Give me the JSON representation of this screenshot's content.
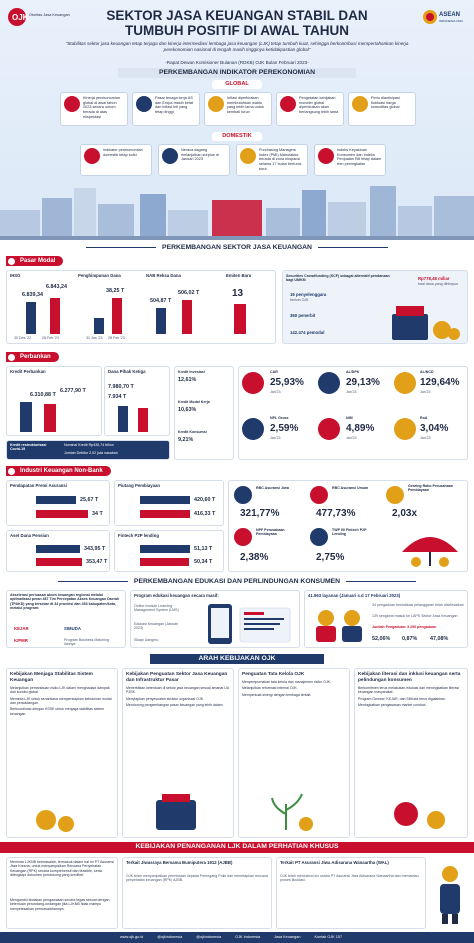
{
  "header": {
    "logo_text": "OJK",
    "logo_sub": "Otoritas Jasa Keuangan",
    "asean_text": "ASEAN",
    "asean_sub": "INDONESIA 2023",
    "title_line1": "SEKTOR JASA KEUANGAN STABIL DAN",
    "title_line2": "TUMBUH POSITIF DI AWAL TAHUN",
    "quote": "\"Stabilitas sektor jasa keuangan tetap terjaga dan kinerja intermediasi lembaga jasa keuangan (LJK) tetap tumbuh kuat, sehingga berkontribusi mempertahankan kinerja perekonomian nasional di tengah masih tingginya ketidakpastian global\"",
    "quote_source": "-Rapat Dewan Komisioner Bulanan (RDKB) OJK Bulan Februari 2023-"
  },
  "indicators": {
    "title": "PERKEMBANGAN INDIKATOR PEREKONOMIAN",
    "global_label": "GLOBAL",
    "domestic_label": "DOMESTIK",
    "global": [
      "Kinerja perekonomian global di awal tahun 2023 secara umum berada di atas ekspektasi",
      "Pasar tenaga kerja AS dan Eropa masih ketat dan inflasi inti yang tetap tinggi",
      "Inflasi diperkirakan membutuhkan waktu yang lebih lama untuk kembali turun",
      "Pengetatan kebijakan moneter global diperkirakan akan berlangsung lebih lama",
      "Perlu diantisipasi fluktuasi harga komoditas global"
    ],
    "domestic": [
      "Indikator perekonomian domestik tetap solid",
      "Neraca dagang melanjutkan surplus di Januari 2023",
      "Purchasing Managers Index (PMI) Manufaktur berada di zona ekspansi selama 17 bulan berturut-turut",
      "Indeks Keyakinan Konsumen dan Indeks Penjualan Riil tetap dalam tren peningkatan"
    ]
  },
  "sektor": {
    "title": "PERKEMBANGAN SEKTOR JASA KEUANGAN",
    "pasar_modal": {
      "label": "Pasar Modal",
      "ihsg_label": "IHSG",
      "ihsg_values": [
        "6.839,34",
        "6.843,24"
      ],
      "ihsg_dates": [
        "30 Des '22",
        "28 Feb '23"
      ],
      "dana_label": "Penghimpunan Dana",
      "dana_value": "38,25 T",
      "dana_dates": [
        "31 Jan '23",
        "28 Feb '23"
      ],
      "nab_label": "NAB Reksa Dana",
      "nab_values": [
        "504,87 T",
        "506,02 T"
      ],
      "emiten_label": "Emiten Baru",
      "emiten_value": "13",
      "scf_title": "Securities Crowdfunding (SCF) sebagai alternatif pendanaan bagi UMKM",
      "scf_stats": [
        {
          "value": "16 penyelenggara",
          "desc": "berizin OJK"
        },
        {
          "value": "360 penerbit",
          "desc": ""
        },
        {
          "value": "142.474 pemodal",
          "desc": ""
        }
      ],
      "scf_total": "Rp778,48 miliar",
      "scf_total_desc": "total dana yang dihimpun"
    },
    "perbankan": {
      "label": "Perbankan",
      "kredit_label": "Kredit Perbankan",
      "kredit_values": [
        "6.310,88 T",
        "6.277,90 T"
      ],
      "dpk_label": "Dana Pihak Ketiga",
      "dpk_values": [
        "7.980,70 T",
        "7.934 T"
      ],
      "restruk_label": "Kredit restrukturisasi Covid-19",
      "restruk_nominal": "Nominal Kredit Rp435,74 triliun",
      "restruk_debitur": "Jumlah Debitur 2,02 juta nasabah",
      "growth": [
        {
          "label": "Kredit Investasi",
          "value": "12,61%"
        },
        {
          "label": "Kredit Modal Kerja",
          "value": "10,63%"
        },
        {
          "label": "Kredit Konsumsi",
          "value": "9,21%"
        }
      ],
      "ratios": [
        {
          "label": "CAR",
          "value": "25,93%",
          "period": "Jan'23"
        },
        {
          "label": "AL/DPK",
          "value": "29,13%",
          "period": "Jan'23"
        },
        {
          "label": "AL/NCD",
          "value": "129,64%",
          "period": "Jan'23"
        },
        {
          "label": "NPL Gross",
          "value": "2,59%",
          "period": "Jan'23"
        },
        {
          "label": "NIM",
          "value": "4,89%",
          "period": "Jan'23"
        },
        {
          "label": "RoA",
          "value": "3,04%",
          "period": "Jan'23"
        }
      ]
    },
    "iknb": {
      "label": "Industri Keuangan Non-Bank",
      "premi_label": "Pendapatan Premi Asuransi",
      "premi_values": [
        "25,67 T",
        "34 T"
      ],
      "piutang_label": "Piutang Pembiayaan",
      "piutang_values": [
        "420,60 T",
        "416,33 T"
      ],
      "aset_label": "Aset Dana Pensiun",
      "aset_values": [
        "343,95 T",
        "353,47 T"
      ],
      "fintech_label": "Fintech P2P lending",
      "fintech_values": [
        "51,13 T",
        "50,34 T"
      ],
      "ratios": [
        {
          "label": "RBC Asuransi Jiwa",
          "value": "321,77%"
        },
        {
          "label": "RBC Asuransi Umum",
          "value": "477,73%"
        },
        {
          "label": "Gearing Ratio Perusahaan Pembiayaan",
          "value": "2,03x"
        },
        {
          "label": "NPF Perusahaan Pembiayaan",
          "value": "2,38%"
        },
        {
          "label": "TWP 90 Fintech P2P Lending",
          "value": "2,75%"
        }
      ]
    }
  },
  "edukasi": {
    "title": "PERKEMBANGAN EDUKASI DAN PERLINDUNGAN KONSUMEN",
    "akselerasi": "Akselerasi perluasan akses keuangan regional melalui optimalisasi peran 487 Tim Percepatan Akses Keuangan Daerah (TPAKD) yang tersebar di 34 provinsi dan 453 kabupaten/kota, melalui program:",
    "programs": [
      "KEJAR",
      "SIMUDA",
      "K/PMR",
      "Program Business Matching lainnya"
    ],
    "edukasi_title": "Program edukasi keuangan secara masif:",
    "edukasi_items": [
      "Online module Learning Management System (LMS)",
      "Edukasi Keuangan (Januari 2023)",
      "Sikapi Uangmu"
    ],
    "layanan_title": "41.963 layanan (Januari s.d 17 Februari 2023)",
    "layanan_stats": [
      "34 pengaduan berindikasi pelanggaran telah diselesaikan",
      "139 sengketa masuk ke LAPS Sektor Jasa Keuangan",
      "Jumlah Pengaduan: 3.290 pengaduan"
    ],
    "layanan_pcts": [
      "52,06%",
      "0,87%",
      "47,08%"
    ]
  },
  "kebijakan": {
    "title": "ARAH KEBIJAKAN OJK",
    "columns": [
      {
        "title": "Kebijakan Menjaga Stabilitas Sistem Keuangan",
        "items": [
          "Melanjutkan pemantauan risiko LJK dalam menghadapi dampak dari kondisi global.",
          "Meminta LJK untuk senantiasa mempersiapkan kebutuhan modal dan pencadangan.",
          "Berkoordinasi dengan KSSK untuk menjaga stabilitas sistem keuangan."
        ]
      },
      {
        "title": "Kebijakan Penguatan Sektor Jasa Keuangan dan Infrastruktur Pasar",
        "items": [
          "Menerbitkan ketentuan di sektor jasa keuangan sesuai amanat UU P2SK.",
          "Menyiapkan penyesuaian struktur organisasi OJK.",
          "Mendorong pengembangan pasar keuangan yang lebih dalam."
        ]
      },
      {
        "title": "Penguatan Tata Kelola OJK",
        "items": [
          "Menyempurnakan tata kelola dan manajemen risiko OJK.",
          "Melanjutkan reformasi internal OJK.",
          "Memperkuat sinergi dengan lembaga terkait."
        ]
      },
      {
        "title": "Kebijakan literasi dan inklusi keuangan serta pelindungan konsumen",
        "items": [
          "Berkomitmen terus melakukan edukasi dan meningkatkan literasi keuangan masyarakat.",
          "Program Gemesi, KEJAR, dan SiMuda terus digalakkan.",
          "Meningkatkan pengawasan market conduct."
        ]
      }
    ]
  },
  "penanganan": {
    "title": "KEBIJAKAN PENANGANAN LJK DALAM PERHATIAN KHUSUS",
    "intro": "Meminta LJKNB bermasalah, termasuk dalam hal ini PT Asuransi Jiwa Kresna, untuk menyampaikan Rencana Penyehatan Keuangan (RPK) secara komprehensif dan feasible, serta dilengkapi dokumen pendukung yang kredibel.",
    "intro2": "Mengambil tindakan pengawasan secara tegas sesuai dengan ketentuan perundang-undangan jika LJKNB tidak mampu menyelesaikan permasalahannya.",
    "cases": [
      {
        "title": "Terkait Jiwasraya Bersama Bumiputera 1912 (AJBB)",
        "text": "OJK telah menyampaikan permintaan kepada Pemegang Polis dan menetapkan rencana penyehatan keuangan (RPK) AJBB."
      },
      {
        "title": "Terkait PT Asuransi Jiwa Adisarana Wanaartha (WAL)",
        "text": "OJK telah mencabut izin usaha PT Asuransi Jiwa Adisarana Wanaartha dan memantau proses likuidasi."
      }
    ]
  },
  "footer": {
    "items": [
      "www.ojk.go.id",
      "@ojkindonesia",
      "@ojkindonesia",
      "OJK Indonesia",
      "Jasa Keuangan",
      "Kontak OJK 157"
    ]
  }
}
